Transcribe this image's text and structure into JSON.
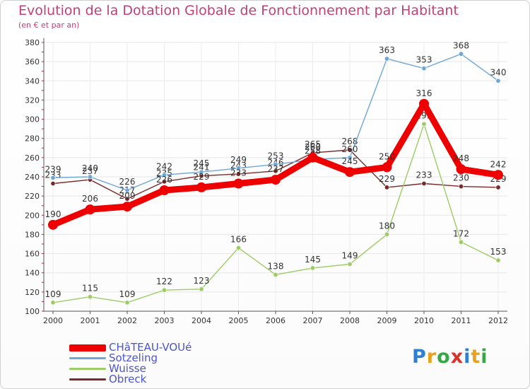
{
  "title": "Evolution de la Dotation Globale de Fonctionnement par Habitant",
  "subtitle": "(en € et par an)",
  "logo": {
    "text": "Proxiti",
    "letters": [
      "P",
      "r",
      "o",
      "x",
      "i",
      "t",
      "i"
    ],
    "colors": [
      "#2f7fd1",
      "#e8a21c",
      "#3aa64a",
      "#d9342b",
      "#2f7fd1",
      "#e8a21c",
      "#3aa64a"
    ]
  },
  "chart_data": {
    "type": "line",
    "title": "Evolution de la Dotation Globale de Fonctionnement par Habitant",
    "subtitle": "(en € et par an)",
    "xlabel": "",
    "ylabel": "",
    "ylim": [
      100,
      380
    ],
    "yticks": [
      100,
      120,
      140,
      160,
      180,
      200,
      220,
      240,
      260,
      280,
      300,
      320,
      340,
      360,
      380
    ],
    "grid": true,
    "legend": "bottom-left",
    "categories": [
      "2000",
      "2001",
      "2002",
      "2003",
      "2004",
      "2005",
      "2006",
      "2007",
      "2008",
      "2009",
      "2010",
      "2011",
      "2012"
    ],
    "series": [
      {
        "name": "Obreck",
        "color": "#7a2a2a",
        "values": [
          233,
          237,
          217,
          235,
          241,
          243,
          246,
          265,
          268,
          229,
          233,
          230,
          229
        ],
        "labels": [
          "233",
          "237",
          "217",
          "235",
          "241",
          "243",
          "246",
          "265",
          "268",
          "229",
          "233",
          "230",
          "229"
        ]
      },
      {
        "name": "Wuisse",
        "color": "#9ccc65",
        "values": [
          109,
          115,
          109,
          122,
          123,
          166,
          138,
          145,
          149,
          180,
          295,
          172,
          153
        ],
        "labels": [
          "109",
          "115",
          "109",
          "122",
          "123",
          "166",
          "138",
          "145",
          "149",
          "180",
          "295",
          "172",
          "153"
        ]
      },
      {
        "name": "Sotzeling",
        "color": "#6ea7d6",
        "values": [
          239,
          240,
          226,
          242,
          245,
          249,
          253,
          258,
          260,
          363,
          353,
          368,
          340
        ],
        "labels": [
          "239",
          "240",
          "226",
          "242",
          "245",
          "249",
          "253",
          "258",
          "260",
          "363",
          "353",
          "368",
          "340"
        ]
      },
      {
        "name": "CHâTEAU-VOUé",
        "color": "#ee0000",
        "values": [
          190,
          206,
          209,
          226,
          229,
          233,
          237,
          260,
          245,
          250,
          316,
          248,
          242
        ],
        "labels": [
          "190",
          "206",
          "209",
          "226",
          "229",
          "233",
          "237",
          "260",
          "245",
          "250",
          "316",
          "248",
          "242"
        ]
      }
    ]
  },
  "legend_items": [
    {
      "name": "CHâTEAU-VOUé",
      "color": "#ee0000",
      "thick": true
    },
    {
      "name": "Sotzeling",
      "color": "#6ea7d6",
      "thick": false
    },
    {
      "name": "Wuisse",
      "color": "#9ccc65",
      "thick": false
    },
    {
      "name": "Obreck",
      "color": "#7a2a2a",
      "thick": false
    }
  ]
}
